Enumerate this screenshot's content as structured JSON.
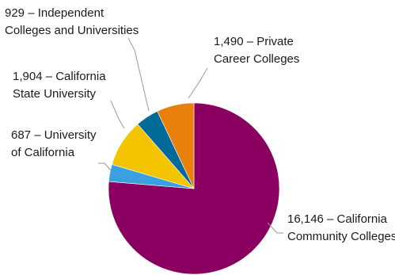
{
  "chart_data": {
    "type": "pie",
    "start_angle_deg": 0,
    "direction": "clockwise",
    "slices": [
      {
        "value": 16146,
        "label_lines": [
          "16,146 – California",
          "Community Colleges"
        ],
        "color": "#8a0060"
      },
      {
        "value": 687,
        "label_lines": [
          "687 – University",
          "of California"
        ],
        "color": "#3aa0df"
      },
      {
        "value": 1904,
        "label_lines": [
          "1,904 – California",
          "State University"
        ],
        "color": "#f5c400"
      },
      {
        "value": 929,
        "label_lines": [
          "929 – Independent",
          "Colleges and Universities"
        ],
        "color": "#006a99"
      },
      {
        "value": 1490,
        "label_lines": [
          "1,490 – Private",
          "Career Colleges"
        ],
        "color": "#e8800c"
      }
    ]
  }
}
